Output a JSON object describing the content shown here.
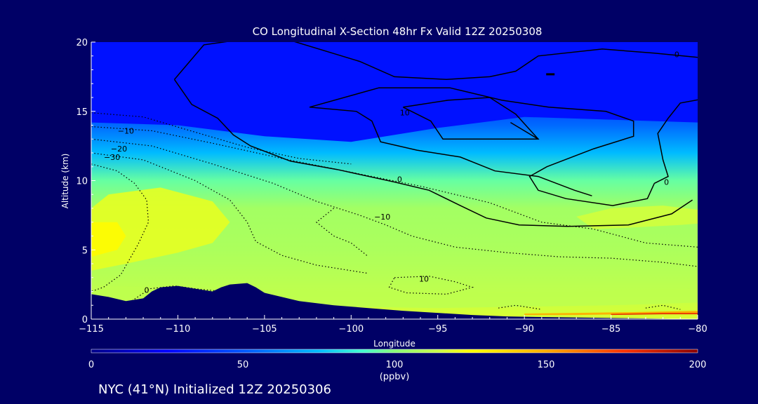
{
  "chart_data": {
    "type": "heatmap",
    "title": "CO Longitudinal X-Section 48hr  Fx Valid 12Z 20250308",
    "xlabel": "Longitude",
    "ylabel": "Altitude (km)",
    "xlim": [
      -115,
      -80
    ],
    "ylim": [
      0,
      20
    ],
    "x_ticks": [
      -115,
      -110,
      -105,
      -100,
      -95,
      -90,
      -85,
      -80
    ],
    "x_tick_labels": [
      "−115",
      "−110",
      "−105",
      "−100",
      "−95",
      "−90",
      "−85",
      "−80"
    ],
    "y_ticks": [
      0,
      5,
      10,
      15,
      20
    ],
    "y_tick_labels": [
      "0",
      "5",
      "10",
      "15",
      "20"
    ],
    "grid": false,
    "colorbar": {
      "range": [
        0,
        200
      ],
      "ticks": [
        0,
        50,
        100,
        150,
        200
      ],
      "tick_labels": [
        "0",
        "50",
        "100",
        "150",
        "200"
      ],
      "unit_label": "(ppbv)",
      "stops": [
        {
          "value": 0,
          "color": "#000088"
        },
        {
          "value": 25,
          "color": "#0000ff"
        },
        {
          "value": 50,
          "color": "#0055ff"
        },
        {
          "value": 75,
          "color": "#00bbff"
        },
        {
          "value": 90,
          "color": "#44ffcc"
        },
        {
          "value": 100,
          "color": "#88ff77"
        },
        {
          "value": 115,
          "color": "#ccff44"
        },
        {
          "value": 125,
          "color": "#ffff00"
        },
        {
          "value": 150,
          "color": "#ffaa00"
        },
        {
          "value": 175,
          "color": "#ff3300"
        },
        {
          "value": 200,
          "color": "#880000"
        }
      ]
    },
    "profile": [
      {
        "alt": 20,
        "co": 28
      },
      {
        "alt": 16,
        "co": 40
      },
      {
        "alt": 14,
        "co": 55
      },
      {
        "alt": 12,
        "co": 75
      },
      {
        "alt": 10,
        "co": 95
      },
      {
        "alt": 8,
        "co": 106
      },
      {
        "alt": 5,
        "co": 108
      },
      {
        "alt": 2,
        "co": 112
      },
      {
        "alt": 0,
        "co": 118
      }
    ],
    "tropopause": [
      {
        "lon": -115,
        "alt": 14.2
      },
      {
        "lon": -110,
        "alt": 14.0
      },
      {
        "lon": -105,
        "alt": 13.2
      },
      {
        "lon": -100,
        "alt": 12.8
      },
      {
        "lon": -95,
        "alt": 13.8
      },
      {
        "lon": -90,
        "alt": 14.6
      },
      {
        "lon": -85,
        "alt": 14.4
      },
      {
        "lon": -80,
        "alt": 14.2
      }
    ],
    "regions": [
      {
        "co": 120,
        "pts": [
          [
            -115,
            3.5
          ],
          [
            -113,
            4
          ],
          [
            -110,
            4.8
          ],
          [
            -108,
            5.5
          ],
          [
            -107,
            7
          ],
          [
            -108,
            8.5
          ],
          [
            -111,
            9.5
          ],
          [
            -114,
            9
          ],
          [
            -115,
            8
          ]
        ]
      },
      {
        "co": 126,
        "pts": [
          [
            -115,
            4.5
          ],
          [
            -113.5,
            5
          ],
          [
            -113,
            6
          ],
          [
            -113.5,
            7
          ],
          [
            -115,
            7
          ]
        ]
      },
      {
        "co": 116,
        "pts": [
          [
            -86,
            6.5
          ],
          [
            -84,
            6.6
          ],
          [
            -81,
            6.8
          ],
          [
            -80,
            6.9
          ],
          [
            -80,
            7.9
          ],
          [
            -82,
            8.2
          ],
          [
            -85,
            8.0
          ],
          [
            -87,
            7.4
          ]
        ]
      },
      {
        "co": 112,
        "pts": [
          [
            -115,
            1
          ],
          [
            -110,
            1.2
          ],
          [
            -105,
            1.1
          ],
          [
            -100,
            0.9
          ],
          [
            -95,
            0.8
          ],
          [
            -90,
            0.9
          ],
          [
            -85,
            1.0
          ],
          [
            -80,
            1.2
          ],
          [
            -80,
            2.2
          ],
          [
            -90,
            1.9
          ],
          [
            -100,
            2.0
          ],
          [
            -110,
            2.3
          ],
          [
            -115,
            2.4
          ]
        ]
      },
      {
        "co": 150,
        "pts": [
          [
            -90,
            0.3
          ],
          [
            -87,
            0.3
          ],
          [
            -84,
            0.35
          ],
          [
            -80,
            0.4
          ],
          [
            -80,
            0.6
          ],
          [
            -84,
            0.5
          ],
          [
            -87,
            0.45
          ],
          [
            -90,
            0.4
          ]
        ]
      },
      {
        "co": 180,
        "pts": [
          [
            -85,
            0.3
          ],
          [
            -82,
            0.35
          ],
          [
            -80,
            0.35
          ],
          [
            -80,
            0.45
          ],
          [
            -82,
            0.45
          ],
          [
            -85,
            0.38
          ]
        ]
      }
    ],
    "terrain": [
      [
        -115,
        1.8
      ],
      [
        -114,
        1.6
      ],
      [
        -113,
        1.3
      ],
      [
        -112,
        1.5
      ],
      [
        -111.5,
        2.0
      ],
      [
        -111,
        2.3
      ],
      [
        -110,
        2.4
      ],
      [
        -109,
        2.2
      ],
      [
        -108,
        2.0
      ],
      [
        -107.5,
        2.3
      ],
      [
        -107,
        2.5
      ],
      [
        -106,
        2.6
      ],
      [
        -105.5,
        2.3
      ],
      [
        -105,
        1.9
      ],
      [
        -104,
        1.6
      ],
      [
        -103,
        1.3
      ],
      [
        -101,
        1.0
      ],
      [
        -99,
        0.8
      ],
      [
        -97,
        0.6
      ],
      [
        -95,
        0.45
      ],
      [
        -93,
        0.3
      ],
      [
        -91,
        0.2
      ],
      [
        -89,
        0.15
      ],
      [
        -86,
        0.1
      ],
      [
        -83,
        0.05
      ],
      [
        -80,
        0.0
      ]
    ],
    "contours": [
      {
        "level": 0,
        "style": "solid",
        "pts": [
          [
            -110.2,
            17.3
          ],
          [
            -108.5,
            19.8
          ],
          [
            -104.5,
            20.5
          ],
          [
            -99.5,
            18.6
          ],
          [
            -97.5,
            17.5
          ],
          [
            -94.5,
            17.3
          ],
          [
            -92,
            17.5
          ],
          [
            -90.5,
            17.9
          ],
          [
            -89.2,
            19.0
          ],
          [
            -85.5,
            19.5
          ],
          [
            -82.5,
            19.2
          ],
          [
            -80,
            18.9
          ]
        ]
      },
      {
        "level": 0,
        "style": "solid",
        "pts": [
          [
            -110.2,
            17.3
          ],
          [
            -109.2,
            15.5
          ],
          [
            -107.7,
            14.5
          ],
          [
            -106.8,
            13.3
          ],
          [
            -105.8,
            12.5
          ],
          [
            -103.5,
            11.4
          ],
          [
            -100.8,
            10.8
          ],
          [
            -97.5,
            9.9
          ],
          [
            -95.5,
            9.3
          ],
          [
            -93.7,
            8.2
          ],
          [
            -92.2,
            7.3
          ],
          [
            -90.3,
            6.8
          ],
          [
            -87.5,
            6.7
          ],
          [
            -84,
            6.8
          ],
          [
            -81.5,
            7.6
          ],
          [
            -80.3,
            8.6
          ]
        ]
      },
      {
        "level": 0,
        "style": "solid",
        "pts": [
          [
            -82.5,
            9.8
          ],
          [
            -81.7,
            10.3
          ],
          [
            -82,
            11.5
          ],
          [
            -82.3,
            13.4
          ],
          [
            -81.7,
            14.5
          ],
          [
            -81,
            15.6
          ],
          [
            -79.7,
            15.9
          ]
        ]
      },
      {
        "level": 0,
        "style": "solid",
        "pts": [
          [
            -102.4,
            15.3
          ],
          [
            -98.4,
            16.7
          ],
          [
            -94.3,
            16.7
          ],
          [
            -91.3,
            15.8
          ],
          [
            -88.6,
            15.3
          ],
          [
            -85.3,
            15.0
          ],
          [
            -83.7,
            14.3
          ],
          [
            -83.7,
            13.2
          ],
          [
            -86,
            12.3
          ],
          [
            -88.7,
            11.0
          ],
          [
            -89.7,
            10.3
          ],
          [
            -89.2,
            9.3
          ],
          [
            -87.6,
            8.7
          ],
          [
            -84.9,
            8.2
          ],
          [
            -82.9,
            8.7
          ],
          [
            -82.5,
            9.8
          ]
        ]
      },
      {
        "level": 0,
        "style": "solid",
        "pts": [
          [
            -102.4,
            15.3
          ],
          [
            -99.7,
            15.0
          ],
          [
            -98.8,
            14.3
          ],
          [
            -98.3,
            12.8
          ],
          [
            -96.2,
            12.2
          ],
          [
            -93.7,
            11.7
          ],
          [
            -91.7,
            10.7
          ],
          [
            -89.2,
            10.3
          ],
          [
            -87.1,
            9.3
          ],
          [
            -86.1,
            8.9
          ]
        ]
      },
      {
        "level": 10,
        "style": "solid",
        "pts": [
          [
            -97,
            15.3
          ],
          [
            -94.4,
            15.8
          ],
          [
            -92,
            16.0
          ],
          [
            -90.5,
            14.8
          ],
          [
            -89.2,
            13.0
          ],
          [
            -92,
            13.0
          ],
          [
            -94.7,
            13.0
          ],
          [
            -95.4,
            14.3
          ],
          [
            -97,
            15.3
          ]
        ]
      },
      {
        "level": 10,
        "style": "solid",
        "pts": [
          [
            -89.2,
            13.0
          ],
          [
            -90.8,
            14.2
          ]
        ]
      },
      {
        "level": -10,
        "style": "dotted",
        "pts": [
          [
            -115,
            13.9
          ],
          [
            -111.5,
            13.6
          ],
          [
            -108,
            12.7
          ],
          [
            -104,
            11.6
          ],
          [
            -100,
            10.6
          ],
          [
            -96,
            9.6
          ],
          [
            -92,
            8.4
          ],
          [
            -89,
            7.0
          ],
          [
            -86,
            6.5
          ],
          [
            -83,
            5.5
          ],
          [
            -80,
            5.2
          ]
        ]
      },
      {
        "level": -20,
        "style": "dotted",
        "pts": [
          [
            -115,
            13.0
          ],
          [
            -111.5,
            12.5
          ],
          [
            -108,
            11.2
          ],
          [
            -104.5,
            9.8
          ],
          [
            -102,
            8.5
          ],
          [
            -99.5,
            7.5
          ],
          [
            -98,
            6.8
          ],
          [
            -96.5,
            6.0
          ],
          [
            -94,
            5.2
          ],
          [
            -91,
            4.8
          ],
          [
            -88,
            4.5
          ],
          [
            -85,
            4.4
          ],
          [
            -82,
            4.1
          ],
          [
            -80,
            3.8
          ]
        ]
      },
      {
        "level": -30,
        "style": "dotted",
        "pts": [
          [
            -115,
            12.0
          ],
          [
            -112,
            11.5
          ],
          [
            -109,
            10.0
          ],
          [
            -107,
            8.6
          ],
          [
            -106,
            7.0
          ],
          [
            -105.5,
            5.6
          ],
          [
            -104,
            4.6
          ],
          [
            -102,
            3.9
          ],
          [
            -99,
            3.3
          ]
        ]
      },
      {
        "level": -10,
        "style": "dotted",
        "pts": [
          [
            -115,
            11.2
          ],
          [
            -113.5,
            10.7
          ],
          [
            -112.5,
            9.8
          ],
          [
            -111.8,
            8.6
          ],
          [
            -111.7,
            7.0
          ],
          [
            -112.3,
            5.4
          ],
          [
            -113.3,
            3.2
          ],
          [
            -114.3,
            2.3
          ],
          [
            -115,
            2.0
          ]
        ]
      },
      {
        "level": 0,
        "style": "dotted",
        "pts": [
          [
            -112.8,
            1.2
          ],
          [
            -111.6,
            2.2
          ],
          [
            -110.2,
            2.4
          ],
          [
            -109,
            2.2
          ],
          [
            -107.5,
            2.0
          ]
        ]
      },
      {
        "level": 10,
        "style": "dotted",
        "pts": [
          [
            -97.5,
            3.0
          ],
          [
            -95.5,
            3.1
          ],
          [
            -94,
            2.7
          ],
          [
            -93,
            2.3
          ],
          [
            -94.5,
            1.8
          ],
          [
            -96.8,
            1.9
          ],
          [
            -97.8,
            2.3
          ],
          [
            -97.5,
            3.0
          ]
        ]
      },
      {
        "level": -10,
        "style": "dotted",
        "pts": [
          [
            -101,
            8.0
          ],
          [
            -102,
            7.0
          ],
          [
            -101,
            6.0
          ],
          [
            -100,
            5.5
          ],
          [
            -99,
            4.5
          ]
        ]
      },
      {
        "level": -10,
        "style": "dotted",
        "pts": [
          [
            -115,
            14.9
          ],
          [
            -112,
            14.6
          ],
          [
            -109,
            13.5
          ],
          [
            -106,
            12.4
          ],
          [
            -103,
            11.6
          ],
          [
            -100,
            11.2
          ]
        ]
      },
      {
        "level": 10,
        "style": "dotted",
        "pts": [
          [
            -91.5,
            0.8
          ],
          [
            -90.5,
            1.0
          ],
          [
            -89,
            0.7
          ]
        ]
      },
      {
        "level": 10,
        "style": "dotted",
        "pts": [
          [
            -83,
            0.8
          ],
          [
            -82,
            1.0
          ],
          [
            -81,
            0.7
          ]
        ]
      }
    ],
    "contour_labels": [
      {
        "text": "0",
        "lon": -81.2,
        "alt": 18.9
      },
      {
        "text": "10",
        "lon": -96.9,
        "alt": 14.7
      },
      {
        "text": "−10",
        "lon": -113.0,
        "alt": 13.4
      },
      {
        "text": "−20",
        "lon": -113.4,
        "alt": 12.1
      },
      {
        "text": "−30",
        "lon": -113.8,
        "alt": 11.5
      },
      {
        "text": "0",
        "lon": -97.2,
        "alt": 9.9
      },
      {
        "text": "0",
        "lon": -81.8,
        "alt": 9.7
      },
      {
        "text": "−10",
        "lon": -98.2,
        "alt": 7.2
      },
      {
        "text": "10",
        "lon": -95.8,
        "alt": 2.7
      },
      {
        "text": "0",
        "lon": -111.8,
        "alt": 1.9
      }
    ],
    "jet_mark": {
      "lon": -88.5,
      "alt": 17.7
    }
  },
  "footer": {
    "text": "NYC (41°N) Initialized 12Z 20250306"
  }
}
